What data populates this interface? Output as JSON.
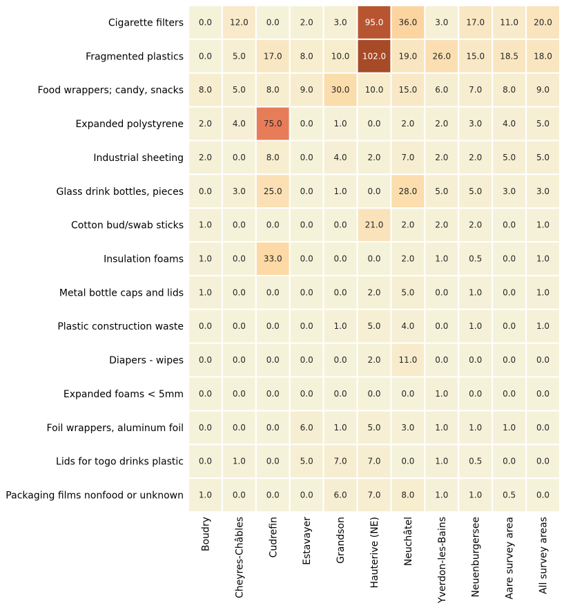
{
  "chart_data": {
    "type": "heatmap",
    "title": "",
    "xlabel": "",
    "ylabel": "",
    "rows": [
      "Cigarette filters",
      "Fragmented plastics",
      "Food wrappers; candy, snacks",
      "Expanded polystyrene",
      "Industrial sheeting",
      "Glass drink bottles, pieces",
      "Cotton bud/swab sticks",
      "Insulation foams",
      "Metal bottle caps and lids",
      "Plastic construction waste",
      "Diapers - wipes",
      "Expanded foams < 5mm",
      "Foil wrappers, aluminum foil",
      "Lids for togo drinks plastic",
      "Packaging films nonfood or unknown"
    ],
    "columns": [
      "Boudry",
      "Cheyres-Châbles",
      "Cudrefin",
      "Estavayer",
      "Grandson",
      "Hauterive (NE)",
      "Neuchâtel",
      "Yverdon-les-Bains",
      "Neuenburgersee",
      "Aare survey area",
      "All survey areas"
    ],
    "values": [
      [
        0.0,
        12.0,
        0.0,
        2.0,
        3.0,
        95.0,
        36.0,
        3.0,
        17.0,
        11.0,
        20.0
      ],
      [
        0.0,
        5.0,
        17.0,
        8.0,
        10.0,
        102.0,
        19.0,
        26.0,
        15.0,
        18.5,
        18.0
      ],
      [
        8.0,
        5.0,
        8.0,
        9.0,
        30.0,
        10.0,
        15.0,
        6.0,
        7.0,
        8.0,
        9.0
      ],
      [
        2.0,
        4.0,
        75.0,
        0.0,
        1.0,
        0.0,
        2.0,
        2.0,
        3.0,
        4.0,
        5.0
      ],
      [
        2.0,
        0.0,
        8.0,
        0.0,
        4.0,
        2.0,
        7.0,
        2.0,
        2.0,
        5.0,
        5.0
      ],
      [
        0.0,
        3.0,
        25.0,
        0.0,
        1.0,
        0.0,
        28.0,
        5.0,
        5.0,
        3.0,
        3.0
      ],
      [
        1.0,
        0.0,
        0.0,
        0.0,
        0.0,
        21.0,
        2.0,
        2.0,
        2.0,
        0.0,
        1.0
      ],
      [
        1.0,
        0.0,
        33.0,
        0.0,
        0.0,
        0.0,
        2.0,
        1.0,
        0.5,
        0.0,
        1.0
      ],
      [
        1.0,
        0.0,
        0.0,
        0.0,
        0.0,
        2.0,
        5.0,
        0.0,
        1.0,
        0.0,
        1.0
      ],
      [
        0.0,
        0.0,
        0.0,
        0.0,
        1.0,
        5.0,
        4.0,
        0.0,
        1.0,
        0.0,
        1.0
      ],
      [
        0.0,
        0.0,
        0.0,
        0.0,
        0.0,
        2.0,
        11.0,
        0.0,
        0.0,
        0.0,
        0.0
      ],
      [
        0.0,
        0.0,
        0.0,
        0.0,
        0.0,
        0.0,
        0.0,
        1.0,
        0.0,
        0.0,
        0.0
      ],
      [
        0.0,
        0.0,
        0.0,
        6.0,
        1.0,
        5.0,
        3.0,
        1.0,
        1.0,
        1.0,
        0.0
      ],
      [
        0.0,
        1.0,
        0.0,
        5.0,
        7.0,
        7.0,
        0.0,
        1.0,
        0.5,
        0.0,
        0.0
      ],
      [
        1.0,
        0.0,
        0.0,
        0.0,
        6.0,
        7.0,
        8.0,
        1.0,
        1.0,
        0.5,
        0.0
      ]
    ],
    "value_format": "one-decimal",
    "colorbar": false,
    "color_scale": {
      "stops": [
        "#f5f2da",
        "#f9e7c3",
        "#fcd8a3",
        "#fbb886",
        "#f68c6c",
        "#d1643f",
        "#a64a28"
      ],
      "text_dark": "#262626",
      "text_light": "#ffffff"
    },
    "grid": false,
    "legend": "none"
  }
}
